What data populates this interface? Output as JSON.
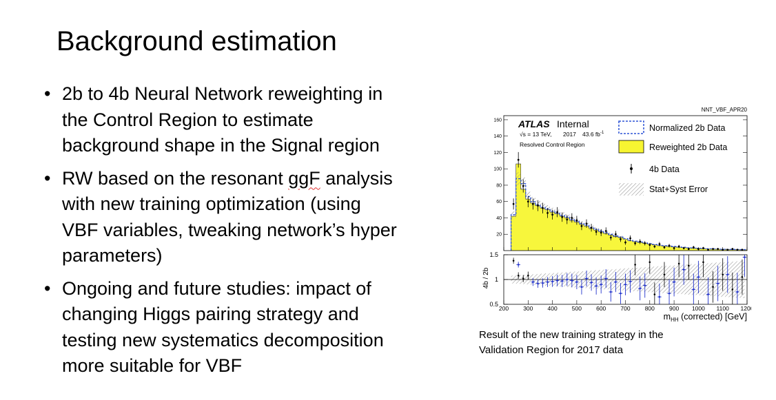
{
  "slide": {
    "title": "Background estimation",
    "bullets": [
      {
        "lines": [
          "2b to 4b Neural Network reweighting in",
          "the Control Region to estimate",
          "background shape in the Signal region"
        ]
      },
      {
        "line1_pre": "RW based on the resonant ",
        "line1_flag": "ggF",
        "line1_post": " analysis",
        "lines_rest": [
          "with new training optimization (using",
          "VBF variables, tweaking network’s hyper",
          "parameters)"
        ]
      },
      {
        "lines": [
          "Ongoing and future studies: impact of",
          "changing Higgs pairing strategy and",
          "testing new systematics decomposition",
          "more suitable for VBF"
        ]
      }
    ],
    "caption_lines": [
      "Result of the new training strategy in the",
      "Validation Region for 2017 data"
    ]
  },
  "chart_data": {
    "type": "bar",
    "plot_tag": "NNT_VBF_APR20",
    "atlas_label": "ATLAS",
    "atlas_status": "Internal",
    "energy_text": "√s = 13 TeV,",
    "year_text": "2017",
    "lumi_text": "43.6 fb",
    "lumi_sup": "-1",
    "region_text": "Resolved Control Region",
    "legend": [
      {
        "label": "Normalized 2b Data",
        "style": "dashed-blue-box"
      },
      {
        "label": "Reweighted 2b Data",
        "style": "yellow-fill"
      },
      {
        "label": "4b Data",
        "style": "black-point"
      },
      {
        "label": "Stat+Syst Error",
        "style": "hatched"
      }
    ],
    "legend_position": "top-right",
    "xlabel_main": "m",
    "xlabel_sub": "HH",
    "xlabel_rest": " (corrected) [GeV]",
    "ratio_ylabel": "4b / 2b",
    "xlim": [
      200,
      1200
    ],
    "ylim_main": [
      0,
      165
    ],
    "ylim_ratio": [
      0.5,
      1.5
    ],
    "x_ticks": [
      200,
      300,
      400,
      500,
      600,
      700,
      800,
      900,
      1000,
      1100,
      1200
    ],
    "y_ticks_main": [
      20,
      40,
      60,
      80,
      100,
      120,
      140,
      160
    ],
    "y_ticks_ratio": [
      0.5,
      1,
      1.5
    ],
    "colors": {
      "reweighted": "#f7f531",
      "normalized": "#2b52d6",
      "data": "#000000",
      "ratio_blue": "#2233cc",
      "hatch": "#888888"
    },
    "bin_edges": [
      230,
      250,
      270,
      290,
      310,
      330,
      350,
      370,
      390,
      410,
      430,
      450,
      470,
      490,
      510,
      530,
      550,
      570,
      590,
      610,
      630,
      650,
      670,
      690,
      710,
      730,
      750,
      770,
      790,
      810,
      830,
      850,
      870,
      890,
      910,
      930,
      950,
      970,
      990,
      1010,
      1030,
      1050,
      1070,
      1090,
      1110,
      1130,
      1150,
      1170,
      1190,
      1200
    ],
    "reweighted": [
      42,
      106,
      75,
      63,
      58,
      55,
      52,
      50,
      47,
      45,
      42,
      40,
      37,
      35,
      32,
      30,
      27,
      25,
      23,
      21,
      19,
      17,
      16,
      14,
      12,
      11,
      10,
      9,
      8,
      7,
      6,
      5.5,
      5,
      4.5,
      4,
      3.6,
      3.2,
      2.8,
      2.5,
      2.2,
      2,
      1.8,
      1.6,
      1.4,
      1.3,
      1.2,
      1.1,
      1,
      0.9
    ],
    "normalized": [
      44,
      88,
      82,
      66,
      60,
      56,
      53,
      51,
      48,
      46,
      43,
      41,
      38,
      36,
      33,
      31,
      28,
      26,
      24,
      22,
      20,
      18,
      16.5,
      14.5,
      12.5,
      11.5,
      10.5,
      9.5,
      8.5,
      7.5,
      6.5,
      6,
      5.5,
      5,
      4.4,
      4,
      3.5,
      3.1,
      2.8,
      2.5,
      2.2,
      2,
      1.8,
      1.6,
      1.5,
      1.4,
      1.3,
      1.2,
      1.1
    ],
    "data_x": [
      240,
      260,
      280,
      300,
      320,
      340,
      360,
      380,
      400,
      420,
      440,
      460,
      480,
      500,
      520,
      540,
      560,
      580,
      600,
      620,
      640,
      660,
      680,
      700,
      720,
      740,
      760,
      780,
      800,
      820,
      840,
      860,
      880,
      900,
      920,
      940,
      960,
      980,
      1000,
      1020,
      1040,
      1060,
      1080,
      1100,
      1120,
      1140,
      1160,
      1180
    ],
    "data_y": [
      57,
      111,
      79,
      60,
      57,
      55,
      52,
      46,
      44,
      47,
      41,
      38,
      40,
      37,
      30,
      33,
      28,
      23,
      22,
      24,
      16,
      20,
      14,
      10,
      15,
      9,
      11,
      9,
      7,
      5,
      8,
      4,
      6,
      3,
      5,
      3,
      2,
      4,
      2,
      3,
      1,
      2,
      2,
      1,
      1,
      2,
      1,
      1
    ],
    "ratio_black_x": [
      240,
      260,
      280,
      300,
      740,
      800,
      820,
      860,
      920,
      960,
      1020,
      1060,
      1100,
      1140,
      1180
    ],
    "ratio_black_y": [
      1.38,
      1.08,
      1.02,
      1.08,
      1.3,
      1.35,
      0.7,
      1.1,
      1.32,
      1.28,
      1.35,
      0.85,
      1.1,
      0.8,
      1.05
    ],
    "ratio_blue_x": [
      260,
      320,
      340,
      360,
      380,
      400,
      420,
      440,
      460,
      480,
      500,
      520,
      540,
      560,
      580,
      600,
      620,
      640,
      660,
      680,
      700,
      720,
      760,
      780,
      840,
      880,
      900,
      940,
      980,
      1000,
      1040,
      1080,
      1120,
      1160,
      1190
    ],
    "ratio_blue_y": [
      1.3,
      0.95,
      0.92,
      0.93,
      0.95,
      0.96,
      0.98,
      0.97,
      1.0,
      0.98,
      0.95,
      0.85,
      1.02,
      0.94,
      0.87,
      0.9,
      1.02,
      0.75,
      0.95,
      0.72,
      0.9,
      0.96,
      0.82,
      0.88,
      0.65,
      0.72,
      0.95,
      1.2,
      0.8,
      1.05,
      0.7,
      0.92,
      1.1,
      0.75,
      1.45
    ]
  }
}
